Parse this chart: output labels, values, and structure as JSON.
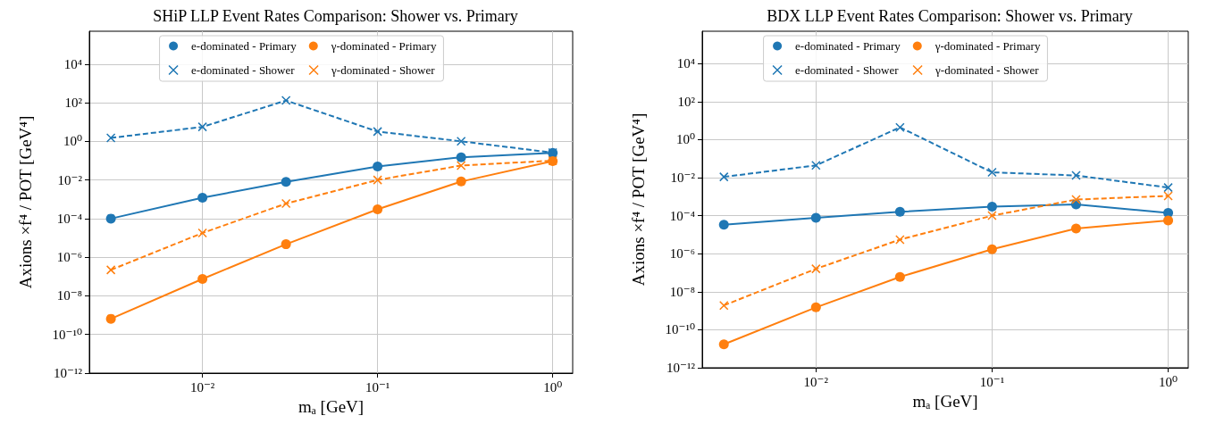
{
  "chart_data": [
    {
      "type": "line",
      "title": "SHiP LLP Event Rates Comparison: Shower vs. Primary",
      "xlabel": "mₐ [GeV]",
      "ylabel": "Axions ×f⁴ / POT [GeV⁴]",
      "log": "xy",
      "grid": true,
      "legend": "top",
      "x": [
        0.003,
        0.01,
        0.03,
        0.1,
        0.3,
        1
      ],
      "xlim": [
        0.00226,
        1.3
      ],
      "xticks": [
        {
          "value": 0.01,
          "label": "10⁻²"
        },
        {
          "value": 0.1,
          "label": "10⁻¹"
        },
        {
          "value": 1,
          "label": "10⁰"
        }
      ],
      "ylim": [
        1e-12,
        500000.0
      ],
      "yticks": [
        {
          "value": 1e-12,
          "label": "10⁻¹²"
        },
        {
          "value": 1e-10,
          "label": "10⁻¹⁰"
        },
        {
          "value": 1e-08,
          "label": "10⁻⁸"
        },
        {
          "value": 1e-06,
          "label": "10⁻⁶"
        },
        {
          "value": 0.0001,
          "label": "10⁻⁴"
        },
        {
          "value": 0.01,
          "label": "10⁻²"
        },
        {
          "value": 1,
          "label": "10⁰"
        },
        {
          "value": 100,
          "label": "10²"
        },
        {
          "value": 10000,
          "label": "10⁴"
        }
      ],
      "series": [
        {
          "name": "e-dominated - Primary",
          "color": "#1f77b4",
          "marker": "circle",
          "line_style": "solid",
          "values": [
            0.0001,
            0.0012,
            0.008,
            0.05,
            0.15,
            0.25
          ]
        },
        {
          "name": "e-dominated - Shower",
          "color": "#1f77b4",
          "marker": "cross",
          "line_style": "dashed",
          "values": [
            1.5,
            5.6,
            130,
            3.2,
            1.0,
            0.26
          ]
        },
        {
          "name": "γ-dominated - Primary",
          "color": "#ff7f0e",
          "marker": "circle",
          "line_style": "solid",
          "values": [
            6.5e-10,
            7.5e-08,
            4.7e-06,
            0.0003,
            0.0083,
            0.095
          ]
        },
        {
          "name": "γ-dominated - Shower",
          "color": "#ff7f0e",
          "marker": "cross",
          "line_style": "dashed",
          "values": [
            2.2e-07,
            1.8e-05,
            0.0006,
            0.01,
            0.056,
            0.1
          ]
        }
      ]
    },
    {
      "type": "line",
      "title": "BDX LLP Event Rates Comparison: Shower vs. Primary",
      "xlabel": "mₐ [GeV]",
      "ylabel": "Axions ×f⁴ / POT [GeV⁴]",
      "log": "xy",
      "grid": true,
      "legend": "top",
      "x": [
        0.003,
        0.01,
        0.03,
        0.1,
        0.3,
        1
      ],
      "xlim": [
        0.00226,
        1.3
      ],
      "xticks": [
        {
          "value": 0.01,
          "label": "10⁻²"
        },
        {
          "value": 0.1,
          "label": "10⁻¹"
        },
        {
          "value": 1,
          "label": "10⁰"
        }
      ],
      "ylim": [
        1e-12,
        500000.0
      ],
      "yticks": [
        {
          "value": 1e-12,
          "label": "10⁻¹²"
        },
        {
          "value": 1e-10,
          "label": "10⁻¹⁰"
        },
        {
          "value": 1e-08,
          "label": "10⁻⁸"
        },
        {
          "value": 1e-06,
          "label": "10⁻⁶"
        },
        {
          "value": 0.0001,
          "label": "10⁻⁴"
        },
        {
          "value": 0.01,
          "label": "10⁻²"
        },
        {
          "value": 1,
          "label": "10⁰"
        },
        {
          "value": 100,
          "label": "10²"
        },
        {
          "value": 10000,
          "label": "10⁴"
        }
      ],
      "series": [
        {
          "name": "e-dominated - Primary",
          "color": "#1f77b4",
          "marker": "circle",
          "line_style": "solid",
          "values": [
            3.3e-05,
            7.8e-05,
            0.00016,
            0.0003,
            0.00039,
            0.00014
          ]
        },
        {
          "name": "e-dominated - Shower",
          "color": "#1f77b4",
          "marker": "cross",
          "line_style": "dashed",
          "values": [
            0.011,
            0.044,
            4.4,
            0.019,
            0.013,
            0.003
          ]
        },
        {
          "name": "γ-dominated - Primary",
          "color": "#ff7f0e",
          "marker": "circle",
          "line_style": "solid",
          "values": [
            1.7e-11,
            1.5e-09,
            6e-08,
            1.7e-06,
            2.1e-05,
            5.6e-05
          ]
        },
        {
          "name": "γ-dominated - Shower",
          "color": "#ff7f0e",
          "marker": "cross",
          "line_style": "dashed",
          "values": [
            1.9e-09,
            1.6e-07,
            5.5e-06,
            0.0001,
            0.0007,
            0.0011
          ]
        }
      ]
    }
  ]
}
